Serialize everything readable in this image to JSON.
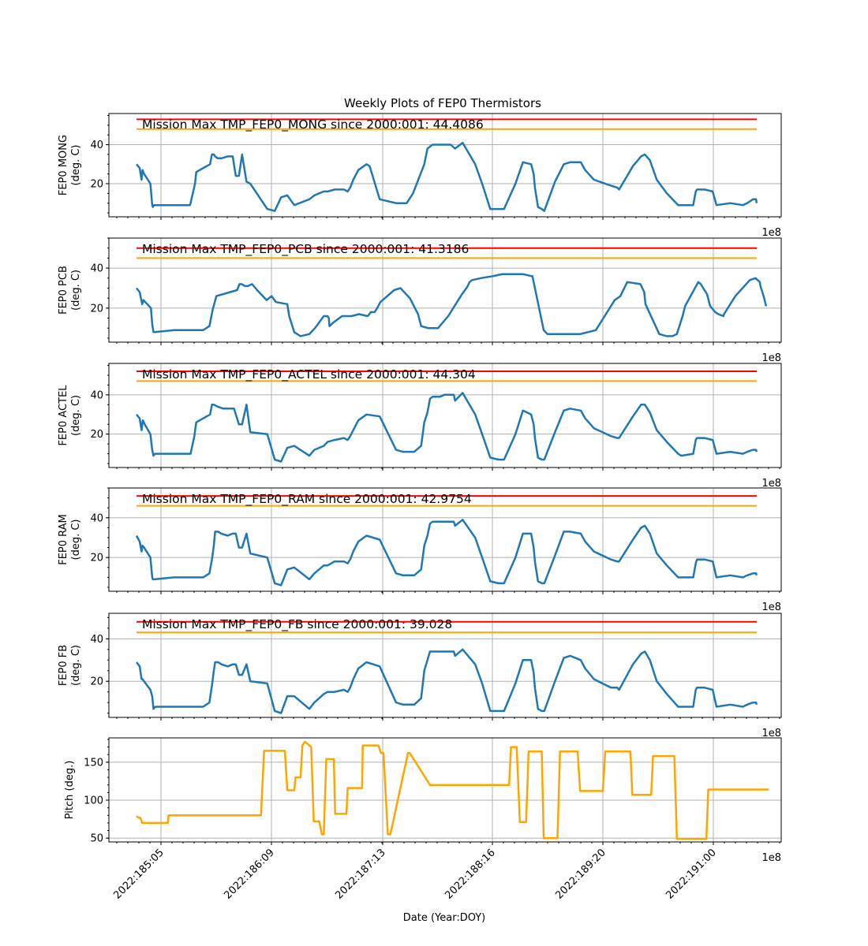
{
  "figure": {
    "title": "Weekly Plots of FEP0 Thermistors",
    "xlabel": "Date (Year:DOY)",
    "x_offset_label": "1e8",
    "x_tick_labels": [
      "2022:185:05",
      "2022:186:09",
      "2022:187:13",
      "2022:188:16",
      "2022:189:20",
      "2022:191:00"
    ]
  },
  "colors": {
    "temperature": "#1f77b4",
    "mission_max": "#ff0000",
    "limit": "#ffa500",
    "pitch": "#ffa500",
    "grid": "#b0b0b0"
  },
  "chart_data": [
    {
      "type": "line",
      "ylabel_lines": [
        "FEP0 MONG",
        "(deg. C)"
      ],
      "annotation": "Mission Max TMP_FEP0_MONG since 2000:001: 44.4086",
      "ylim": [
        3,
        56
      ],
      "yticks": [
        20,
        40
      ],
      "x_hours": [
        0,
        0.5,
        0.8,
        0.95,
        1.2,
        2.2,
        2.5,
        2.6,
        2.8,
        5.4,
        6.9,
        8.5,
        8.6,
        9.3,
        9.5,
        11.7,
        12.0,
        12.3,
        12.5,
        12.9,
        13.5,
        14.5,
        15.3,
        15.8,
        16.3,
        16.8,
        17.5,
        18.1,
        20.8,
        22.0,
        23.0,
        24.0,
        25.1,
        27.5,
        28.3,
        29.8,
        30.4,
        31.5,
        33.0,
        33.6,
        34.0,
        34.5,
        35.3,
        36.6,
        37.1,
        37.2,
        38.7,
        41.3,
        42.0,
        43.0,
        44.0,
        45.8,
        46.3,
        46.7,
        47.1,
        47.6,
        48.3,
        48.4,
        49.0,
        49.6,
        50.0,
        50.7,
        51.9,
        53.9,
        55.0,
        56.3,
        57.6,
        58.5,
        60.3,
        61.5,
        62.8,
        63.2,
        63.4,
        63.9,
        64.5,
        64.9,
        66.6,
        68.0,
        69.0,
        70.7,
        71.4,
        72.8,
        75.5,
        76.5,
        76.8,
        79.0,
        80.3,
        80.9,
        81.7,
        82.8,
        84.4,
        86.2,
        86.7,
        88.6,
        89.0,
        89.2,
        90.4,
        91.7,
        92.3,
        94.5,
        96.5,
        97.2,
        98.1,
        98.6,
        98.7
      ],
      "values": [
        30,
        28,
        22,
        27,
        25,
        20,
        9,
        8,
        9,
        9,
        9,
        9,
        10,
        20,
        26,
        30,
        35,
        35,
        34,
        33,
        33,
        34,
        34,
        24,
        24,
        35,
        21,
        20,
        7,
        6,
        13,
        14,
        9,
        12,
        14,
        16,
        16,
        17,
        17,
        16,
        18,
        22,
        27,
        30,
        29,
        28,
        12,
        10,
        10,
        10,
        15,
        30,
        38,
        39,
        40,
        40,
        40,
        40,
        40,
        40,
        40,
        38,
        41,
        30,
        20,
        7,
        7,
        7,
        20,
        31,
        30,
        25,
        18,
        8,
        7,
        6,
        21,
        30,
        31,
        31,
        27,
        22,
        19,
        18,
        17,
        29,
        34,
        35,
        32,
        22,
        15,
        9,
        9,
        9,
        16,
        17,
        17,
        16,
        9,
        10,
        9,
        10,
        12,
        12,
        10
      ],
      "mission_max_line": 53,
      "limit_line": 48
    },
    {
      "type": "line",
      "ylabel_lines": [
        "FEP0 PCB",
        "(deg. C)"
      ],
      "annotation": "Mission Max TMP_FEP0_PCB since 2000:001: 41.3186",
      "ylim": [
        3,
        55
      ],
      "yticks": [
        20,
        40
      ],
      "x_hours": [
        0,
        0.5,
        0.9,
        1.1,
        1.4,
        2.3,
        2.5,
        2.7,
        2.9,
        6.0,
        10.0,
        10.2,
        10.6,
        11.6,
        12.1,
        12.7,
        16.0,
        16.4,
        16.7,
        17.3,
        17.7,
        18.4,
        19.2,
        20.7,
        21.5,
        22.2,
        24.0,
        24.3,
        25.1,
        26.1,
        27.5,
        28.4,
        29.8,
        30.4,
        30.6,
        30.7,
        31.4,
        32.7,
        34.2,
        35.4,
        36.8,
        37.3,
        37.9,
        38.3,
        38.8,
        41.0,
        42.0,
        43.5,
        44.8,
        45.3,
        46.4,
        47.6,
        48.0,
        48.8,
        49.6,
        51.8,
        52.5,
        52.7,
        53.0,
        53.4,
        54.8,
        56.8,
        58.2,
        59.4,
        60.6,
        61.5,
        62.8,
        63.0,
        63.6,
        64.8,
        65.4,
        67.3,
        68.2,
        70.6,
        73.1,
        76.1,
        77.0,
        78.1,
        80.2,
        80.8,
        81.0,
        83.2,
        84.4,
        85.3,
        86.0,
        86.9,
        87.3,
        89.4,
        89.8,
        90.8,
        91.3,
        92.1,
        92.6,
        93.4,
        93.5,
        95.3,
        97.6,
        98.5,
        99.2,
        99.3,
        99.8,
        100.2
      ],
      "values": [
        30,
        28,
        22,
        24,
        23,
        20,
        12,
        8,
        8,
        9,
        9,
        9,
        9,
        11,
        19,
        26,
        29,
        32,
        32,
        31,
        31,
        32,
        29,
        24,
        26,
        23,
        22,
        16,
        8,
        6,
        7,
        10,
        16,
        16,
        15,
        11,
        13,
        16,
        16,
        17,
        16,
        18,
        18,
        20,
        23,
        29,
        30,
        25,
        17,
        11,
        10,
        10,
        10,
        13,
        16,
        27,
        30,
        31,
        33,
        34,
        35,
        36,
        37,
        37,
        37,
        37,
        36,
        36,
        27,
        9,
        7,
        7,
        7,
        7,
        9,
        24,
        26,
        33,
        32,
        28,
        22,
        7,
        6,
        6,
        7,
        16,
        21,
        33,
        32,
        27,
        21,
        18,
        17,
        16,
        17,
        26,
        34,
        35,
        33,
        31,
        26,
        21
      ],
      "mission_max_line": 50,
      "limit_line": 45
    },
    {
      "type": "line",
      "ylabel_lines": [
        "FEP0 ACTEL",
        "(deg. C)"
      ],
      "annotation": "Mission Max TMP_FEP0_ACTEL since 2000:001: 44.304",
      "ylim": [
        3,
        56
      ],
      "yticks": [
        20,
        40
      ],
      "x_hours": [
        0,
        0.5,
        0.8,
        1.0,
        1.3,
        2.2,
        2.5,
        2.7,
        2.9,
        6.0,
        7.3,
        8.0,
        8.6,
        9.2,
        9.5,
        11.7,
        12.0,
        12.3,
        12.9,
        13.8,
        14.5,
        15.5,
        16.3,
        16.8,
        17.5,
        18.1,
        20.8,
        22.0,
        23.0,
        24.0,
        25.1,
        27.5,
        28.3,
        29.8,
        30.4,
        31.5,
        33.0,
        33.6,
        34.0,
        34.5,
        35.3,
        36.6,
        38.7,
        41.3,
        42.4,
        43.4,
        44.2,
        45.3,
        45.8,
        46.3,
        46.7,
        47.1,
        47.6,
        48.3,
        49.0,
        49.6,
        50.1,
        50.5,
        50.7,
        51.9,
        53.9,
        55.0,
        56.3,
        57.6,
        58.5,
        60.3,
        61.5,
        62.8,
        63.2,
        63.4,
        63.9,
        64.5,
        64.9,
        66.6,
        68.0,
        69.0,
        70.7,
        71.4,
        72.8,
        75.5,
        76.5,
        76.8,
        79.0,
        80.3,
        80.9,
        81.7,
        82.8,
        84.4,
        86.2,
        86.7,
        88.6,
        89.0,
        89.2,
        90.4,
        91.7,
        92.3,
        94.5,
        96.5,
        97.2,
        98.1,
        98.6,
        98.7
      ],
      "values": [
        30,
        28,
        22,
        27,
        25,
        20,
        12,
        9,
        10,
        10,
        10,
        10,
        10,
        19,
        26,
        30,
        35,
        35,
        34,
        33,
        33,
        33,
        25,
        25,
        35,
        21,
        20,
        7,
        6,
        13,
        14,
        9,
        12,
        14,
        16,
        17,
        18,
        17,
        19,
        22,
        27,
        30,
        29,
        12,
        11,
        11,
        11,
        14,
        26,
        31,
        38,
        39,
        39,
        39,
        40,
        40,
        40,
        40,
        37,
        41,
        30,
        20,
        8,
        7,
        7,
        20,
        32,
        30,
        25,
        18,
        8,
        7,
        7,
        21,
        32,
        33,
        32,
        28,
        23,
        19,
        18,
        18,
        29,
        35,
        35,
        31,
        22,
        16,
        10,
        9,
        10,
        17,
        18,
        18,
        17,
        10,
        11,
        10,
        11,
        12,
        12,
        11
      ],
      "mission_max_line": 52,
      "limit_line": 47
    },
    {
      "type": "line",
      "ylabel_lines": [
        "FEP0 RAM",
        "(deg. C)"
      ],
      "annotation": "Mission Max TMP_FEP0_RAM since 2000:001: 42.9754",
      "ylim": [
        3,
        55
      ],
      "yticks": [
        20,
        40
      ],
      "x_hours": [
        0,
        0.5,
        0.8,
        0.95,
        1.2,
        2.2,
        2.5,
        2.6,
        2.8,
        6.0,
        10.0,
        10.2,
        10.6,
        11.6,
        12.0,
        12.3,
        12.5,
        13.0,
        13.5,
        14.5,
        15.3,
        15.8,
        16.3,
        16.8,
        17.5,
        18.1,
        20.8,
        22.0,
        23.0,
        24.0,
        25.1,
        27.5,
        28.3,
        29.8,
        30.4,
        31.5,
        33.0,
        33.6,
        34.0,
        34.5,
        35.3,
        36.6,
        38.7,
        41.3,
        42.4,
        43.4,
        44.2,
        45.3,
        45.8,
        46.3,
        46.7,
        47.1,
        47.6,
        48.3,
        49.0,
        49.6,
        50.1,
        50.5,
        50.7,
        51.9,
        53.9,
        55.0,
        56.3,
        57.6,
        58.5,
        60.3,
        61.5,
        62.8,
        63.2,
        63.4,
        63.9,
        64.5,
        64.9,
        66.6,
        68.0,
        69.0,
        70.7,
        71.4,
        72.8,
        75.5,
        76.5,
        76.8,
        79.0,
        80.3,
        80.9,
        81.7,
        82.8,
        84.4,
        86.2,
        86.7,
        88.6,
        89.0,
        89.2,
        90.4,
        91.7,
        92.3,
        94.5,
        96.5,
        97.2,
        98.1,
        98.6,
        98.7
      ],
      "values": [
        31,
        28,
        23,
        26,
        25,
        20,
        10,
        9,
        9,
        10,
        10,
        10,
        10,
        12,
        19,
        26,
        33,
        33,
        32,
        31,
        32,
        32,
        25,
        25,
        32,
        22,
        20,
        7,
        6,
        14,
        15,
        9,
        12,
        16,
        16,
        18,
        18,
        17,
        19,
        23,
        28,
        31,
        29,
        12,
        11,
        11,
        11,
        14,
        26,
        31,
        37,
        38,
        38,
        38,
        38,
        38,
        38,
        38,
        36,
        39,
        30,
        20,
        8,
        7,
        7,
        20,
        32,
        32,
        25,
        18,
        8,
        7,
        7,
        21,
        33,
        33,
        32,
        28,
        23,
        19,
        18,
        18,
        29,
        35,
        36,
        32,
        22,
        16,
        10,
        10,
        10,
        17,
        19,
        19,
        18,
        10,
        11,
        10,
        11,
        12,
        12,
        11
      ],
      "mission_max_line": 51,
      "limit_line": 46
    },
    {
      "type": "line",
      "ylabel_lines": [
        "FEP0 FB",
        "(deg. C)"
      ],
      "annotation": "Mission Max TMP_FEP0_FB since 2000:001: 39.028",
      "ylim": [
        3,
        52
      ],
      "yticks": [
        20,
        40
      ],
      "x_hours": [
        0,
        0.5,
        0.8,
        0.95,
        1.2,
        2.2,
        2.5,
        2.7,
        3.0,
        6.0,
        10.0,
        10.2,
        10.6,
        11.6,
        12.0,
        12.3,
        12.5,
        13.0,
        13.5,
        14.5,
        15.3,
        15.8,
        16.3,
        16.8,
        17.5,
        18.1,
        20.8,
        22.0,
        23.0,
        24.0,
        25.1,
        27.5,
        28.3,
        29.8,
        30.4,
        31.5,
        33.0,
        33.6,
        34.0,
        34.5,
        35.3,
        36.6,
        38.7,
        41.3,
        42.4,
        43.4,
        44.2,
        45.3,
        45.8,
        46.3,
        46.7,
        47.1,
        47.6,
        48.3,
        49.0,
        49.6,
        50.1,
        50.5,
        50.7,
        51.9,
        53.9,
        55.0,
        56.3,
        57.6,
        58.5,
        60.3,
        61.5,
        62.8,
        63.2,
        63.4,
        63.9,
        64.5,
        64.9,
        66.6,
        68.0,
        69.0,
        70.7,
        71.4,
        72.8,
        75.5,
        76.5,
        76.8,
        79.0,
        80.3,
        80.9,
        81.7,
        82.8,
        84.4,
        86.2,
        86.7,
        88.6,
        89.0,
        89.2,
        90.4,
        91.7,
        92.3,
        94.5,
        96.5,
        97.2,
        98.1,
        98.6,
        98.7
      ],
      "values": [
        29,
        27,
        21,
        21,
        20,
        16,
        13,
        7,
        8,
        8,
        8,
        8,
        8,
        10,
        18,
        25,
        29,
        29,
        28,
        27,
        28,
        28,
        23,
        23,
        28,
        20,
        19,
        6,
        5,
        13,
        13,
        7,
        10,
        14,
        15,
        15,
        16,
        15,
        17,
        21,
        26,
        29,
        27,
        10,
        9,
        9,
        9,
        12,
        25,
        30,
        34,
        34,
        34,
        34,
        34,
        34,
        34,
        34,
        32,
        35,
        28,
        19,
        6,
        6,
        6,
        19,
        30,
        30,
        24,
        17,
        7,
        6,
        6,
        20,
        31,
        32,
        30,
        26,
        21,
        17,
        17,
        16,
        28,
        33,
        34,
        30,
        20,
        14,
        8,
        8,
        8,
        16,
        17,
        17,
        16,
        8,
        9,
        8,
        9,
        10,
        10,
        9
      ],
      "mission_max_line": 48,
      "limit_line": 43
    },
    {
      "type": "line",
      "ylabel_lines": [
        "Pitch (deg.)"
      ],
      "ylim": [
        45,
        182
      ],
      "yticks": [
        50,
        100,
        150
      ],
      "x_hours": [
        0,
        0.3,
        0.6,
        0.9,
        1.0,
        5.0,
        5.1,
        19.8,
        20.3,
        20.6,
        23.6,
        24.0,
        25.1,
        25.3,
        26.1,
        26.4,
        26.8,
        27.8,
        28.2,
        29.1,
        29.5,
        29.8,
        30.2,
        31.4,
        31.6,
        33.4,
        33.6,
        35.9,
        36.0,
        38.5,
        38.9,
        39.3,
        40.0,
        40.4,
        43.2,
        43.5,
        46.7,
        47.0,
        59.3,
        59.6,
        60.5,
        61.0,
        62.0,
        62.4,
        64.5,
        64.8,
        67.0,
        67.4,
        70.2,
        70.6,
        74.2,
        74.6,
        78.6,
        78.9,
        81.9,
        82.2,
        85.6,
        86.0,
        90.7,
        91.0,
        94.8,
        95.2,
        96.5,
        96.8,
        98.6,
        98.9,
        99.0,
        99.7,
        100.6
      ],
      "values": [
        79,
        77,
        77,
        70,
        70,
        70,
        80,
        80,
        165,
        165,
        165,
        113,
        113,
        130,
        130,
        172,
        177,
        170,
        72,
        72,
        55,
        55,
        154,
        154,
        82,
        82,
        116,
        116,
        172,
        172,
        162,
        162,
        55,
        55,
        162,
        162,
        120,
        120,
        120,
        170,
        170,
        71,
        71,
        164,
        164,
        50,
        50,
        164,
        164,
        112,
        112,
        164,
        164,
        107,
        107,
        158,
        158,
        49,
        49,
        114,
        114,
        114,
        114,
        114,
        114,
        114,
        114,
        114,
        114
      ],
      "mission_max_line": null,
      "limit_line": null
    }
  ],
  "axes_extents": {
    "x_hours_range": [
      -4.4,
      102.6
    ]
  }
}
